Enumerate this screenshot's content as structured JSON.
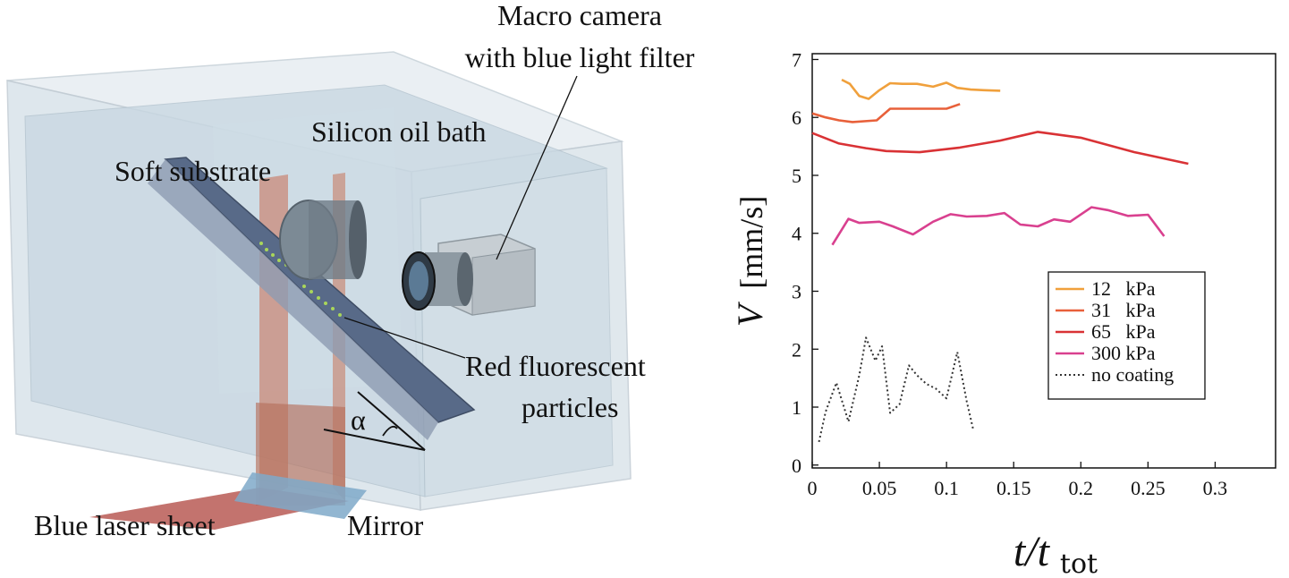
{
  "schematic": {
    "labels": {
      "camera_line1": "Macro camera",
      "camera_line2": "with blue light filter",
      "bath": "Silicon oil bath",
      "substrate": "Soft substrate",
      "particles_line1": "Red fluorescent",
      "particles_line2": "particles",
      "laser": "Blue laser sheet",
      "mirror": "Mirror",
      "angle": "α"
    }
  },
  "axis_labels": {
    "y_main": "V",
    "y_unit": "[mm/s]",
    "x_main": "t/t",
    "x_sub": "tot"
  },
  "chart_data": {
    "type": "line",
    "xlim": [
      0,
      0.345
    ],
    "ylim": [
      -0.05,
      7.1
    ],
    "x_ticks": [
      0,
      0.05,
      0.1,
      0.15,
      0.2,
      0.25,
      0.3
    ],
    "x_tick_labels": [
      "0",
      "0.05",
      "0.1",
      "0.15",
      "0.2",
      "0.25",
      "0.3"
    ],
    "y_ticks": [
      0,
      1,
      2,
      3,
      4,
      5,
      6,
      7
    ],
    "y_tick_labels": [
      "0",
      "1",
      "2",
      "3",
      "4",
      "5",
      "6",
      "7"
    ],
    "legend_position": "right",
    "series": [
      {
        "name": "12   kPa",
        "color": "#f0a03c",
        "dash": "solid",
        "x": [
          0.022,
          0.028,
          0.035,
          0.042,
          0.05,
          0.058,
          0.067,
          0.078,
          0.09,
          0.1,
          0.108,
          0.118,
          0.128,
          0.14
        ],
        "y": [
          6.65,
          6.58,
          6.37,
          6.32,
          6.47,
          6.59,
          6.58,
          6.58,
          6.53,
          6.6,
          6.51,
          6.48,
          6.47,
          6.46
        ]
      },
      {
        "name": "31   kPa",
        "color": "#e8603a",
        "dash": "solid",
        "x": [
          0.0,
          0.01,
          0.02,
          0.03,
          0.048,
          0.058,
          0.075,
          0.1,
          0.11
        ],
        "y": [
          6.07,
          6.0,
          5.95,
          5.92,
          5.95,
          6.15,
          6.15,
          6.15,
          6.23
        ]
      },
      {
        "name": "65   kPa",
        "color": "#d93235",
        "dash": "solid",
        "x": [
          0.0,
          0.02,
          0.04,
          0.055,
          0.08,
          0.11,
          0.14,
          0.168,
          0.2,
          0.24,
          0.28
        ],
        "y": [
          5.73,
          5.55,
          5.47,
          5.42,
          5.4,
          5.48,
          5.6,
          5.75,
          5.65,
          5.4,
          5.2
        ]
      },
      {
        "name": "300 kPa",
        "color": "#d9408f",
        "dash": "solid",
        "x": [
          0.015,
          0.027,
          0.035,
          0.05,
          0.06,
          0.075,
          0.09,
          0.103,
          0.115,
          0.13,
          0.143,
          0.155,
          0.168,
          0.18,
          0.192,
          0.208,
          0.22,
          0.235,
          0.25,
          0.262
        ],
        "y": [
          3.8,
          4.25,
          4.18,
          4.2,
          4.12,
          3.98,
          4.2,
          4.33,
          4.29,
          4.3,
          4.35,
          4.15,
          4.12,
          4.24,
          4.2,
          4.45,
          4.4,
          4.3,
          4.32,
          3.95
        ]
      },
      {
        "name": "no coating",
        "color": "#333333",
        "dash": "dotted",
        "x": [
          0.005,
          0.01,
          0.018,
          0.027,
          0.035,
          0.04,
          0.047,
          0.052,
          0.058,
          0.065,
          0.072,
          0.078,
          0.085,
          0.092,
          0.1,
          0.108,
          0.115,
          0.12
        ],
        "y": [
          0.4,
          0.92,
          1.42,
          0.75,
          1.55,
          2.2,
          1.8,
          2.05,
          0.9,
          1.05,
          1.72,
          1.55,
          1.4,
          1.32,
          1.15,
          1.95,
          1.1,
          0.6
        ]
      }
    ]
  }
}
